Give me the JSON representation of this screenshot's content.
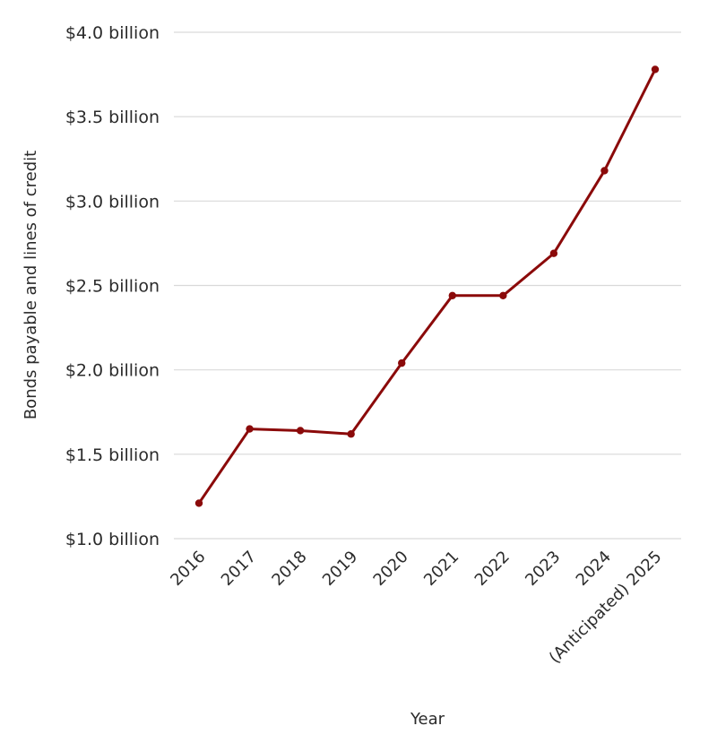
{
  "chart_data": {
    "type": "line",
    "title": "",
    "xlabel": "Year",
    "ylabel": "Bonds payable and lines of credit",
    "categories": [
      "2016",
      "2017",
      "2018",
      "2019",
      "2020",
      "2021",
      "2022",
      "2023",
      "2024",
      "(Anticipated) 2025"
    ],
    "series": [
      {
        "name": "Bonds payable and lines of credit",
        "color": "#8b0a0a",
        "values": [
          1.21,
          1.65,
          1.64,
          1.62,
          2.04,
          2.44,
          2.44,
          2.69,
          3.18,
          3.78
        ]
      }
    ],
    "ylim": [
      1.0,
      4.0
    ],
    "yticks": [
      1.0,
      1.5,
      2.0,
      2.5,
      3.0,
      3.5,
      4.0
    ],
    "ytick_labels": [
      "$1.0 billion",
      "$1.5 billion",
      "$2.0 billion",
      "$2.5 billion",
      "$3.0 billion",
      "$3.5 billion",
      "$4.0 billion"
    ],
    "y_units": "billion USD",
    "grid": true,
    "legend": "none"
  }
}
